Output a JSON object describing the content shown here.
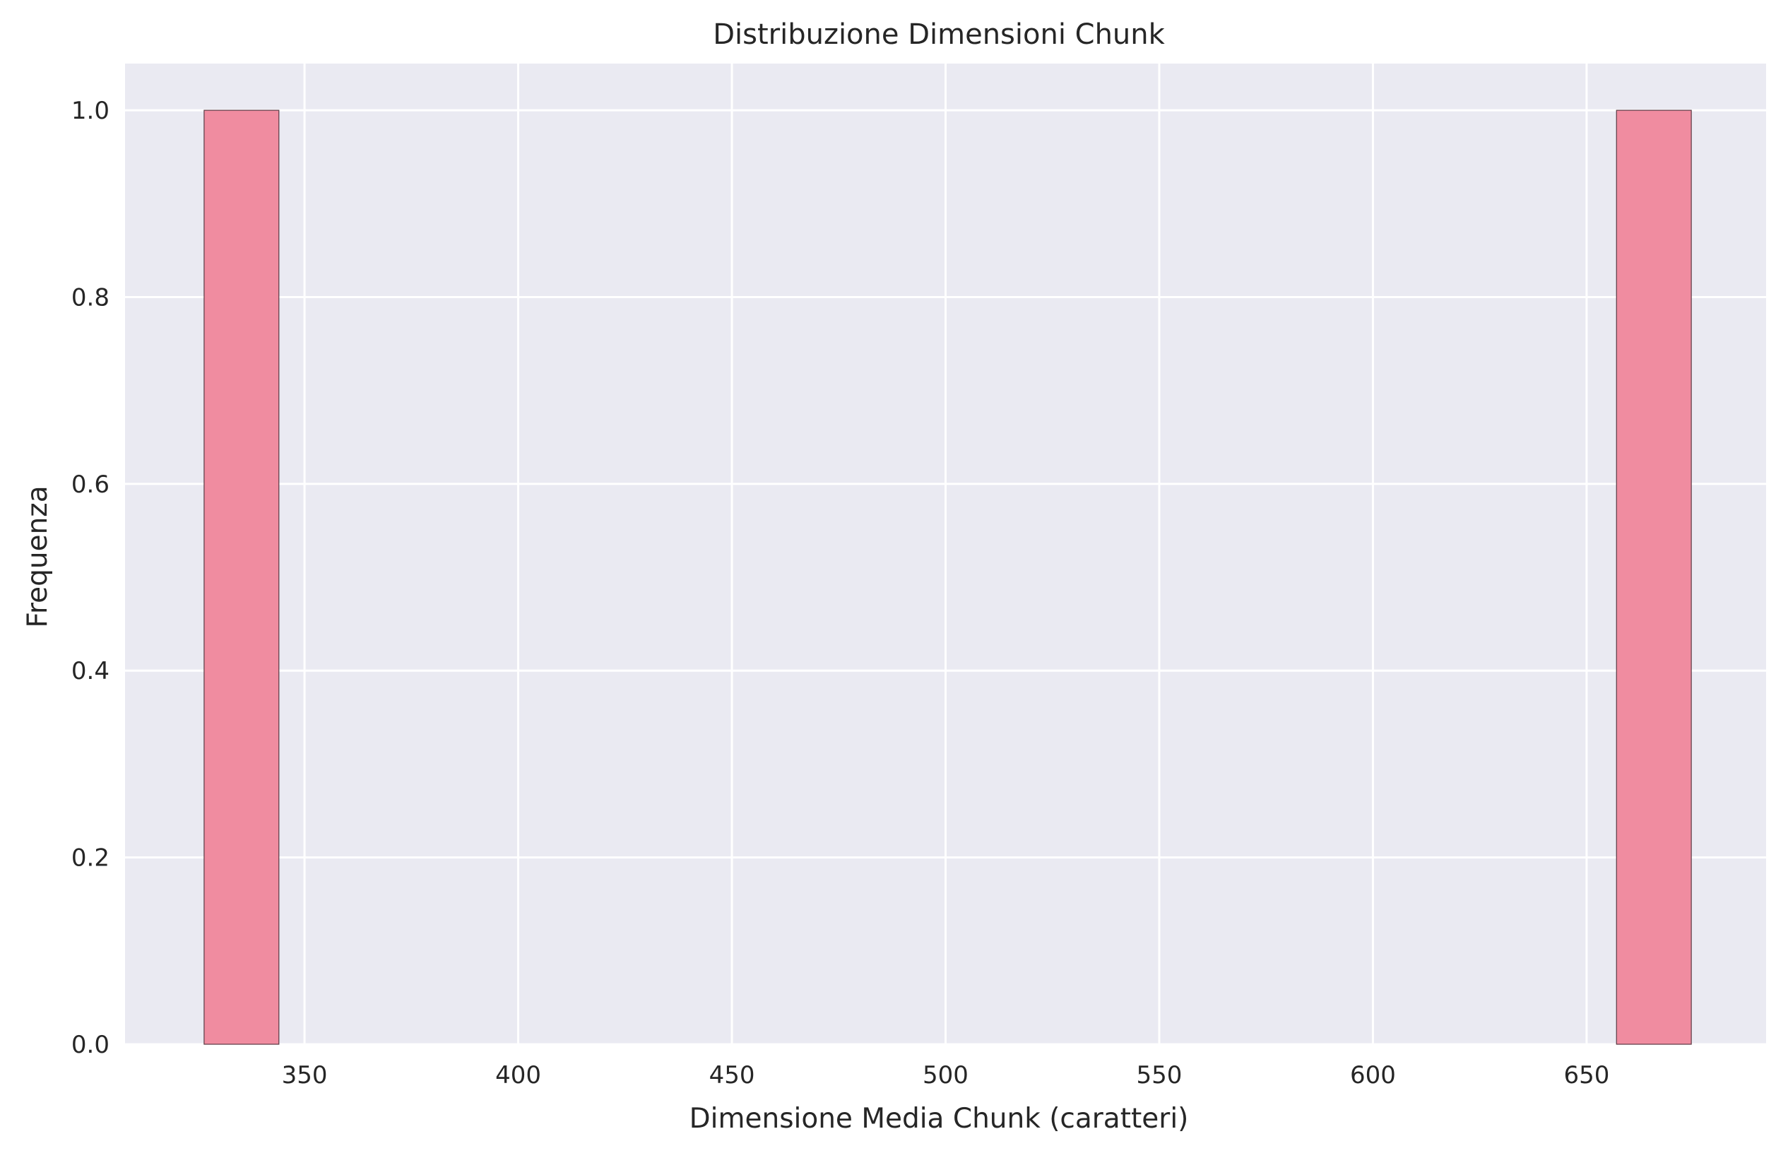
{
  "chart_data": {
    "type": "bar",
    "subtype": "histogram",
    "title": "Distribuzione Dimensioni Chunk",
    "xlabel": "Dimensione Media Chunk (caratteri)",
    "ylabel": "Frequenza",
    "xlim": [
      308,
      692
    ],
    "ylim": [
      0,
      1.05
    ],
    "x_ticks": [
      350,
      400,
      450,
      500,
      550,
      600,
      650
    ],
    "y_ticks": [
      0.0,
      0.2,
      0.4,
      0.6,
      0.8,
      1.0
    ],
    "x_tick_labels": [
      "350",
      "400",
      "450",
      "500",
      "550",
      "600",
      "650"
    ],
    "y_tick_labels": [
      "0.0",
      "0.2",
      "0.4",
      "0.6",
      "0.8",
      "1.0"
    ],
    "bins": [
      {
        "x0": 326.5,
        "x1": 344,
        "count": 1
      },
      {
        "x0": 657,
        "x1": 674.5,
        "count": 1
      }
    ],
    "grid": true,
    "legend": "none",
    "colors": {
      "bar_fill": "#f08ca0",
      "bar_edge": "#5a3a44",
      "plot_background": "#eaeaf2",
      "grid": "#ffffff"
    }
  }
}
